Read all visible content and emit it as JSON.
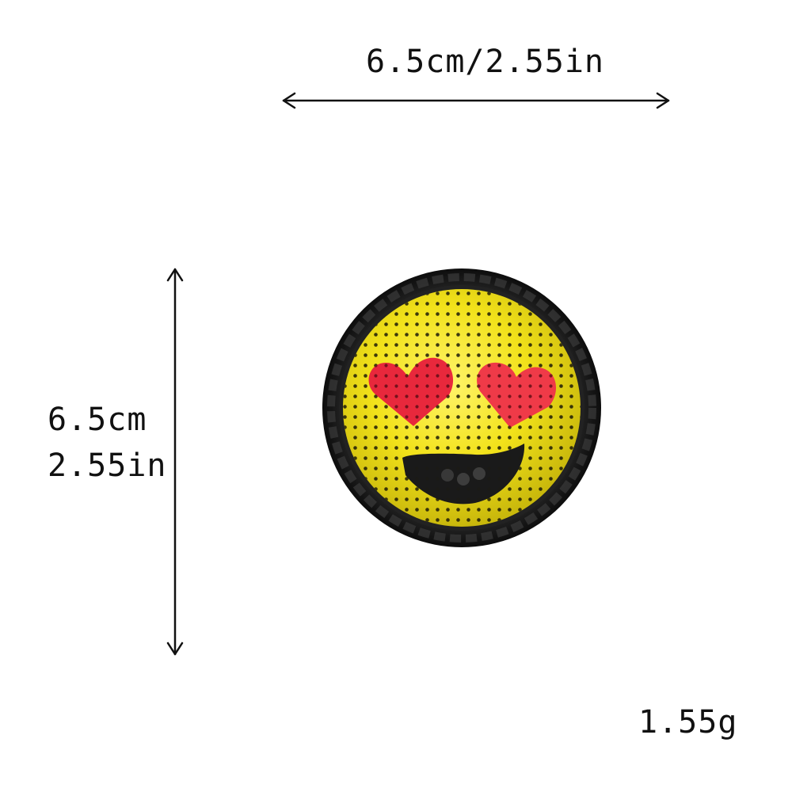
{
  "labels": {
    "width": "6.5cm/2.55in",
    "height_cm": "6.5cm",
    "height_in": "2.55in",
    "weight": "1.55g"
  },
  "product": {
    "icon": "heart-eyes-smiley-sequin-patch",
    "colors": {
      "border": "#111111",
      "face": "#f2e21a",
      "hearts": "#e8283c",
      "mouth": "#1a1a1a"
    }
  }
}
